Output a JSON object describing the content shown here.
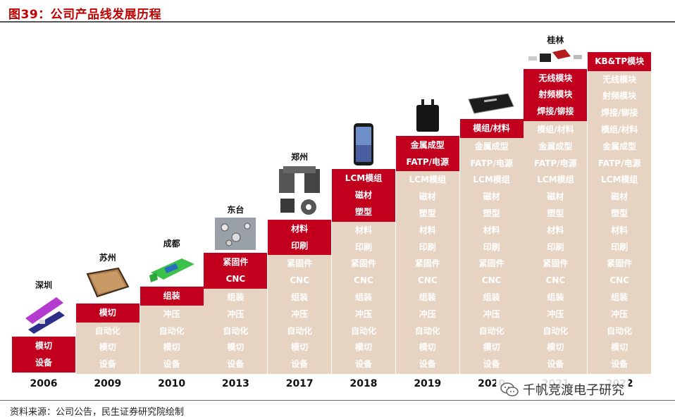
{
  "title": "图39：公司产品线发展历程",
  "source": "资料来源：公司公告，民生证券研究院绘制",
  "watermark": "千帆竞渡电子研究",
  "colors": {
    "red": "#c2001d",
    "beige": "#e7d3c2",
    "title": "#c00000"
  },
  "chart_data": {
    "type": "table",
    "columns": [
      {
        "year": "2006",
        "location": "深圳",
        "new": [
          "模切",
          "设备"
        ],
        "existing": []
      },
      {
        "year": "2009",
        "location": "苏州",
        "new": [
          "模切"
        ],
        "existing": [
          "自动化",
          "模切",
          "设备"
        ]
      },
      {
        "year": "2010",
        "location": "成都",
        "new": [
          "组装"
        ],
        "existing": [
          "冲压",
          "自动化",
          "模切",
          "设备"
        ]
      },
      {
        "year": "2013",
        "location": "东台",
        "new": [
          "紧固件",
          "CNC"
        ],
        "existing": [
          "组装",
          "冲压",
          "自动化",
          "模切",
          "设备"
        ]
      },
      {
        "year": "2017",
        "location": "郑州",
        "new": [
          "材料",
          "印刷"
        ],
        "existing": [
          "紧固件",
          "CNC",
          "组装",
          "冲压",
          "自动化",
          "模切",
          "设备"
        ]
      },
      {
        "year": "2018",
        "location": "",
        "new": [
          "LCM模组",
          "磁材",
          "塑型"
        ],
        "existing": [
          "材料",
          "印刷",
          "紧固件",
          "CNC",
          "组装",
          "冲压",
          "自动化",
          "模切",
          "设备"
        ]
      },
      {
        "year": "2019",
        "location": "",
        "new": [
          "金属成型",
          "FATP/电源"
        ],
        "existing": [
          "LCM模组",
          "磁材",
          "塑型",
          "材料",
          "印刷",
          "紧固件",
          "CNC",
          "组装",
          "冲压",
          "自动化",
          "模切",
          "设备"
        ]
      },
      {
        "year": "2020",
        "location": "",
        "new": [
          "模组/材料"
        ],
        "existing": [
          "金属成型",
          "FATP/电源",
          "LCM模组",
          "磁材",
          "塑型",
          "材料",
          "印刷",
          "紧固件",
          "CNC",
          "组装",
          "冲压",
          "自动化",
          "模切",
          "设备"
        ]
      },
      {
        "year": "2021",
        "location": "桂林",
        "new": [
          "无线模块",
          "射频模块",
          "焊接/铆接"
        ],
        "existing": [
          "模组/材料",
          "金属成型",
          "FATP/电源",
          "LCM模组",
          "磁材",
          "塑型",
          "材料",
          "印刷",
          "紧固件",
          "CNC",
          "组装",
          "冲压",
          "自动化",
          "模切",
          "设备"
        ]
      },
      {
        "year": "2022",
        "location": "",
        "new": [
          "KB&TP模块"
        ],
        "existing": [
          "无线模块",
          "射频模块",
          "焊接/铆接",
          "模组/材料",
          "金属成型",
          "FATP/电源",
          "LCM模组",
          "磁材",
          "塑型",
          "材料",
          "印刷",
          "紧固件",
          "CNC",
          "组装",
          "冲压",
          "自动化",
          "模切",
          "设备"
        ]
      }
    ]
  }
}
